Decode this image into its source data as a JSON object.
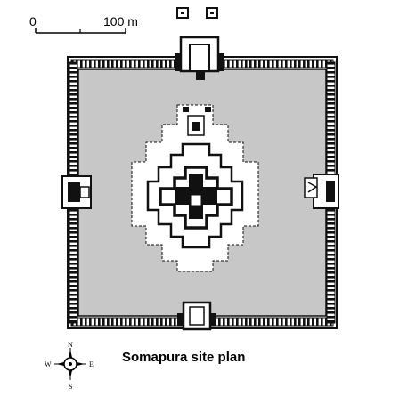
{
  "scale_bar": {
    "start_label": "0",
    "end_label": "100 m"
  },
  "compass": {
    "north": "N",
    "south": "S",
    "east": "E",
    "west": "W"
  },
  "caption": "Somapura site plan"
}
